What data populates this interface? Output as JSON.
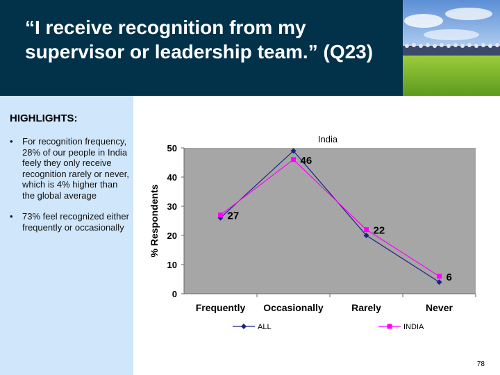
{
  "slide": {
    "title": "“I receive recognition from my supervisor or leadership team.” (Q23)",
    "page_number": "78"
  },
  "highlights": {
    "heading": "HIGHLIGHTS:",
    "bullet_char": "•",
    "items": [
      "For recognition frequency, 28% of our people in India feely they only receive recognition rarely or never, which is 4% higher than the global average",
      "73% feel recognized either frequently or occasionally"
    ]
  },
  "chart_data": {
    "type": "line",
    "title": "India",
    "ylabel": "% Respondents",
    "xlabel": "",
    "categories": [
      "Frequently",
      "Occasionally",
      "Rarely",
      "Never"
    ],
    "ylim": [
      0,
      50
    ],
    "yticks": [
      "0",
      "10",
      "20",
      "30",
      "40",
      "50"
    ],
    "series": [
      {
        "name": "ALL",
        "values": [
          26,
          49,
          20,
          4
        ],
        "color": "#1a237e",
        "marker": "diamond"
      },
      {
        "name": "INDIA",
        "values": [
          27,
          46,
          22,
          6
        ],
        "color": "#ff00ff",
        "marker": "square"
      }
    ],
    "data_labels": [
      "27",
      "46",
      "22",
      "6"
    ],
    "plot_background": "#a6a6a6",
    "legend_position": "bottom"
  }
}
